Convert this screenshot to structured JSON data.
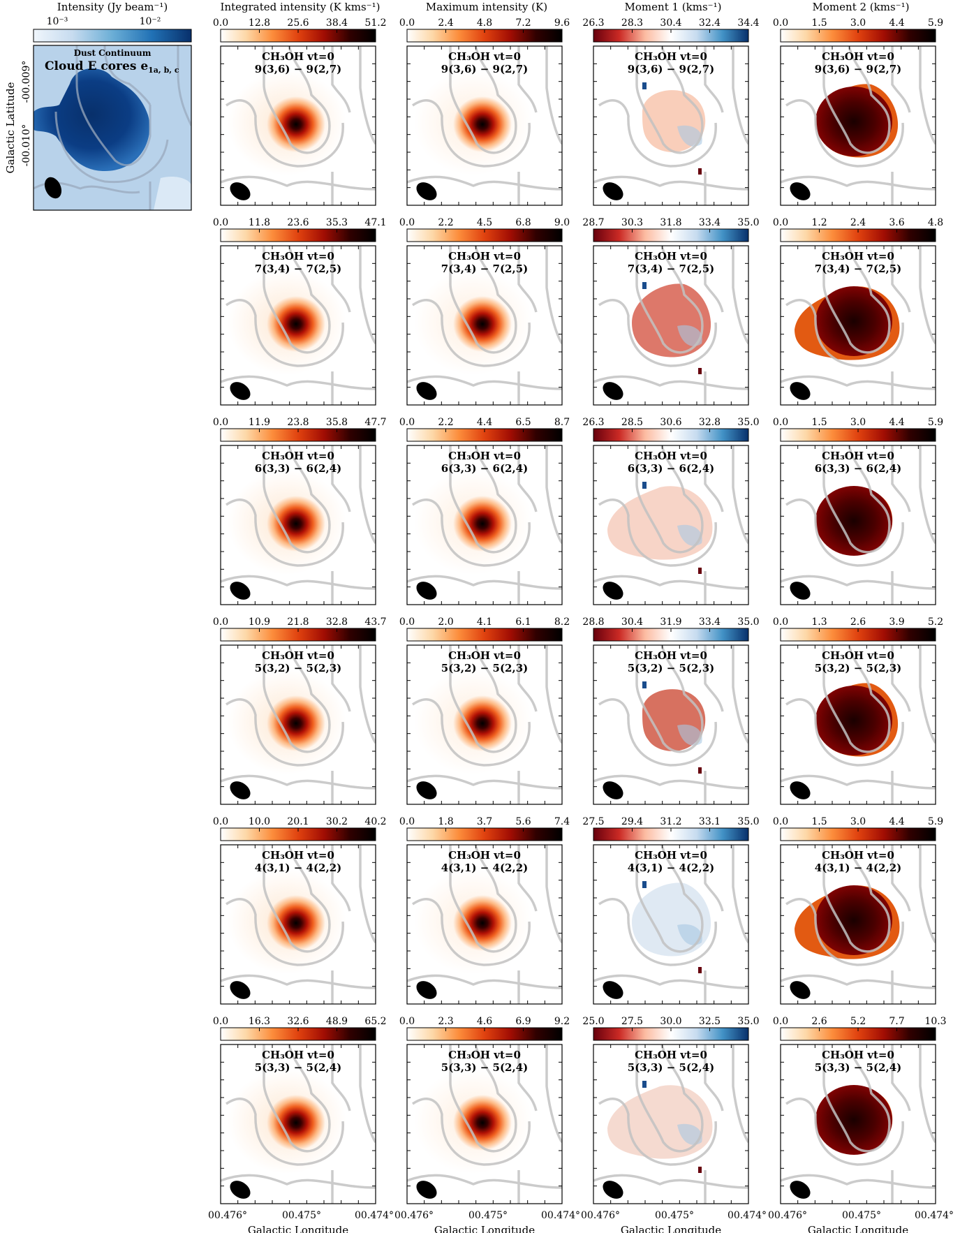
{
  "colors": {
    "orange_ramp": [
      "#ffffff",
      "#fdd7a6",
      "#fc8d3c",
      "#e0420f",
      "#a10d03",
      "#300000",
      "#000000"
    ],
    "blue_ramp": [
      "#f0f6fc",
      "#c6dbef",
      "#6baed6",
      "#2171b5",
      "#08306b"
    ],
    "diverging_ramp": [
      "#67000d",
      "#cb2a25",
      "#fcbba1",
      "#ffffff",
      "#c6dbef",
      "#4292c6",
      "#08306b"
    ],
    "contour": "#c2c2c2",
    "beam": "#000000"
  },
  "chart_data": {
    "type": "heatmap",
    "title": "",
    "xlabel": "Galactic Longitude",
    "ylabel": "Galactic Latitude",
    "x_ticks": [
      "00.476°",
      "00.475°",
      "00.474°"
    ],
    "y_ticks": [
      "-00.009°",
      "-00.010°"
    ],
    "continuum": {
      "name": "Dust Continuum",
      "title": "Cloud E cores e",
      "subscript": "1a, b, c",
      "colorbar_label": "Intensity (Jy beam⁻¹)",
      "colorbar_ticks": [
        "10⁻³",
        "10⁻²"
      ],
      "colormap": "blue"
    },
    "column_titles": [
      "Integrated intensity (K kms⁻¹)",
      "Maximum intensity (K)",
      "Moment 1 (kms⁻¹)",
      "Moment 2 (kms⁻¹)"
    ],
    "column_colormaps": [
      "orange",
      "orange",
      "diverging",
      "orange"
    ],
    "species": "CH₃OH vt=0",
    "rows": [
      {
        "transition": "9(3,6) − 9(2,7)",
        "colorbars": [
          {
            "ticks": [
              "0.0",
              "12.8",
              "25.6",
              "38.4",
              "51.2"
            ]
          },
          {
            "ticks": [
              "0.0",
              "2.4",
              "4.8",
              "7.2",
              "9.6"
            ]
          },
          {
            "ticks": [
              "26.3",
              "28.3",
              "30.4",
              "32.4",
              "34.4"
            ]
          },
          {
            "ticks": [
              "0.0",
              "1.5",
              "3.0",
              "4.4",
              "5.9"
            ]
          }
        ]
      },
      {
        "transition": "7(3,4) − 7(2,5)",
        "colorbars": [
          {
            "ticks": [
              "0.0",
              "11.8",
              "23.6",
              "35.3",
              "47.1"
            ]
          },
          {
            "ticks": [
              "0.0",
              "2.2",
              "4.5",
              "6.8",
              "9.0"
            ]
          },
          {
            "ticks": [
              "28.7",
              "30.3",
              "31.8",
              "33.4",
              "35.0"
            ]
          },
          {
            "ticks": [
              "0.0",
              "1.2",
              "2.4",
              "3.6",
              "4.8"
            ]
          }
        ]
      },
      {
        "transition": "6(3,3) − 6(2,4)",
        "colorbars": [
          {
            "ticks": [
              "0.0",
              "11.9",
              "23.8",
              "35.8",
              "47.7"
            ]
          },
          {
            "ticks": [
              "0.0",
              "2.2",
              "4.4",
              "6.5",
              "8.7"
            ]
          },
          {
            "ticks": [
              "26.3",
              "28.5",
              "30.6",
              "32.8",
              "35.0"
            ]
          },
          {
            "ticks": [
              "0.0",
              "1.5",
              "3.0",
              "4.4",
              "5.9"
            ]
          }
        ]
      },
      {
        "transition": "5(3,2) − 5(2,3)",
        "colorbars": [
          {
            "ticks": [
              "0.0",
              "10.9",
              "21.8",
              "32.8",
              "43.7"
            ]
          },
          {
            "ticks": [
              "0.0",
              "2.0",
              "4.1",
              "6.1",
              "8.2"
            ]
          },
          {
            "ticks": [
              "28.8",
              "30.4",
              "31.9",
              "33.4",
              "35.0"
            ]
          },
          {
            "ticks": [
              "0.0",
              "1.3",
              "2.6",
              "3.9",
              "5.2"
            ]
          }
        ]
      },
      {
        "transition": "4(3,1) − 4(2,2)",
        "colorbars": [
          {
            "ticks": [
              "0.0",
              "10.0",
              "20.1",
              "30.2",
              "40.2"
            ]
          },
          {
            "ticks": [
              "0.0",
              "1.8",
              "3.7",
              "5.6",
              "7.4"
            ]
          },
          {
            "ticks": [
              "27.5",
              "29.4",
              "31.2",
              "33.1",
              "35.0"
            ]
          },
          {
            "ticks": [
              "0.0",
              "1.5",
              "3.0",
              "4.4",
              "5.9"
            ]
          }
        ]
      },
      {
        "transition": "5(3,3) − 5(2,4)",
        "colorbars": [
          {
            "ticks": [
              "0.0",
              "16.3",
              "32.6",
              "48.9",
              "65.2"
            ]
          },
          {
            "ticks": [
              "0.0",
              "2.3",
              "4.6",
              "6.9",
              "9.2"
            ]
          },
          {
            "ticks": [
              "25.0",
              "27.5",
              "30.0",
              "32.5",
              "35.0"
            ]
          },
          {
            "ticks": [
              "0.0",
              "2.6",
              "5.2",
              "7.7",
              "10.3"
            ]
          }
        ]
      }
    ]
  }
}
